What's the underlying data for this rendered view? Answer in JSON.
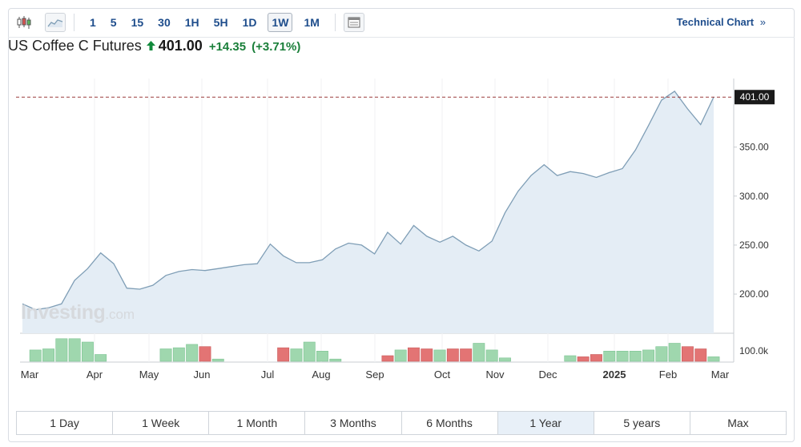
{
  "toolbar": {
    "intervals": [
      "1",
      "5",
      "15",
      "30",
      "1H",
      "5H",
      "1D",
      "1W",
      "1M"
    ],
    "active_interval": "1W",
    "technical_link": "Technical Chart",
    "technical_arrow": "»"
  },
  "quote": {
    "title": "US Coffee C Futures",
    "price": "401.00",
    "change": "+14.35",
    "change_pct": "(+3.71%)",
    "direction": "up"
  },
  "watermark": {
    "brand": "Investing",
    "suffix": ".com"
  },
  "colors": {
    "line": "#7f9eb6",
    "area": "#e4edf5",
    "up_volume": "#9fd7ae",
    "down_volume": "#e37474",
    "price_tag_bg": "#1a1a1a",
    "dashed_line": "#9b3b3b"
  },
  "chart_data": {
    "type": "area",
    "price_axis": {
      "ticks": [
        "200.00",
        "250.00",
        "300.00",
        "350.00"
      ],
      "min": 160,
      "max": 420
    },
    "last_price_label": "401.00",
    "last_price": 401,
    "x_axis_labels": [
      "Mar",
      "Apr",
      "May",
      "Jun",
      "Jul",
      "Aug",
      "Sep",
      "Oct",
      "Nov",
      "Dec",
      "2025",
      "Feb",
      "Mar"
    ],
    "series": [
      {
        "values": [
          190,
          184,
          186,
          190,
          214,
          226,
          242,
          231,
          206,
          205,
          209,
          219,
          223,
          225,
          224,
          226,
          228,
          230,
          231,
          251,
          239,
          232,
          232,
          235,
          246,
          252,
          250,
          241,
          263,
          251,
          270,
          259,
          253,
          259,
          250,
          244,
          254,
          283,
          305,
          321,
          332,
          321,
          325,
          323,
          319,
          324,
          328,
          347,
          372,
          398,
          407,
          389,
          373,
          401
        ]
      }
    ],
    "volume": {
      "axis_label": "100.0k",
      "values": [
        0,
        10,
        11,
        20,
        20,
        17,
        6,
        0,
        0,
        0,
        0,
        11,
        12,
        15,
        13,
        2,
        0,
        0,
        0,
        0,
        12,
        11,
        17,
        9,
        2,
        0,
        0,
        0,
        5,
        10,
        12,
        11,
        10,
        11,
        11,
        16,
        10,
        3,
        0,
        0,
        0,
        0,
        5,
        4,
        6,
        9,
        9,
        9,
        10,
        13,
        16,
        13,
        11,
        4
      ],
      "direction": [
        "up",
        "up",
        "up",
        "up",
        "up",
        "up",
        "up",
        "up",
        "up",
        "up",
        "up",
        "up",
        "up",
        "up",
        "down",
        "up",
        "up",
        "up",
        "up",
        "up",
        "down",
        "up",
        "up",
        "up",
        "up",
        "up",
        "up",
        "up",
        "down",
        "up",
        "down",
        "down",
        "up",
        "down",
        "down",
        "up",
        "up",
        "up",
        "up",
        "up",
        "up",
        "up",
        "up",
        "down",
        "down",
        "up",
        "up",
        "up",
        "up",
        "up",
        "up",
        "down",
        "down",
        "up"
      ]
    }
  },
  "ranges": [
    "1 Day",
    "1 Week",
    "1 Month",
    "3 Months",
    "6 Months",
    "1 Year",
    "5 years",
    "Max"
  ],
  "active_range": "1 Year"
}
